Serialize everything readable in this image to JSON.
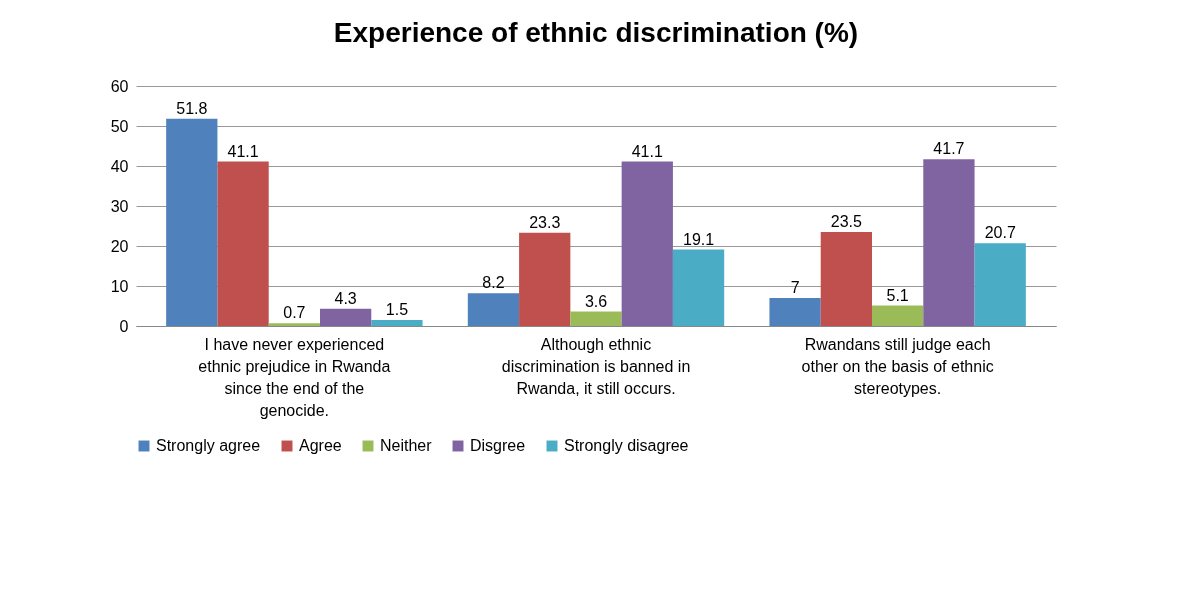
{
  "chart_data": {
    "type": "bar",
    "title": "Experience of ethnic discrimination (%)",
    "categories": [
      "I have never experienced ethnic prejudice in Rwanda since the end of the genocide.",
      "Although ethnic discrimination is banned in Rwanda, it still occurs.",
      "Rwandans still judge each other on the basis of ethnic stereotypes."
    ],
    "series": [
      {
        "name": "Strongly agree",
        "color": "#4f81bd",
        "values": [
          51.8,
          8.2,
          7
        ]
      },
      {
        "name": "Agree",
        "color": "#c0504d",
        "values": [
          41.1,
          23.3,
          23.5
        ]
      },
      {
        "name": "Neither",
        "color": "#9bbb59",
        "values": [
          0.7,
          3.6,
          5.1
        ]
      },
      {
        "name": "Disgree",
        "color": "#8064a2",
        "values": [
          4.3,
          41.1,
          41.7
        ]
      },
      {
        "name": "Strongly disagree",
        "color": "#4bacc6",
        "values": [
          1.5,
          19.1,
          20.7
        ]
      }
    ],
    "ylim": [
      0,
      60
    ],
    "yticks": [
      0,
      10,
      20,
      30,
      40,
      50,
      60
    ],
    "grid": "y",
    "legend": "bottom",
    "data_labels": true
  }
}
